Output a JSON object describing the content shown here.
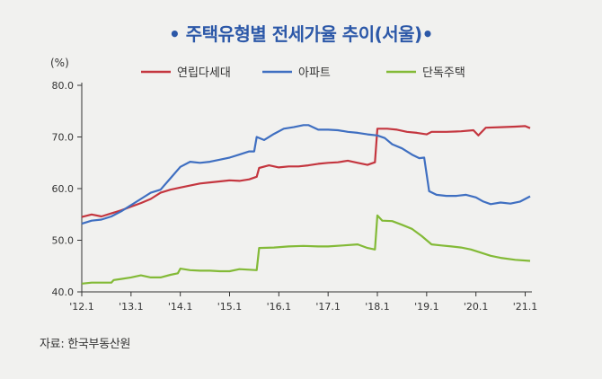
{
  "title": "• 주택유형별 전세가율 추이(서울)•",
  "source": "자료: 한국부동산원",
  "chart_data": {
    "type": "line",
    "ylabel": "(%)",
    "ylim": [
      40,
      80
    ],
    "yticks": [
      {
        "value": 80,
        "label": "80.0"
      },
      {
        "value": 70,
        "label": "70.0"
      },
      {
        "value": 60,
        "label": "60.0"
      },
      {
        "value": 50,
        "label": "50.0"
      },
      {
        "value": 40,
        "label": "40.0"
      }
    ],
    "xlim": [
      2012.0,
      2021.1
    ],
    "xticks": [
      {
        "value": 2012,
        "label": "'12.1"
      },
      {
        "value": 2013,
        "label": "'13.1"
      },
      {
        "value": 2014,
        "label": "'14.1"
      },
      {
        "value": 2015,
        "label": "'15.1"
      },
      {
        "value": 2016,
        "label": "'16.1"
      },
      {
        "value": 2017,
        "label": "'17.1"
      },
      {
        "value": 2018,
        "label": "'18.1"
      },
      {
        "value": 2019,
        "label": "'19.1"
      },
      {
        "value": 2020,
        "label": "'20.1"
      },
      {
        "value": 2021,
        "label": "'21.1"
      }
    ],
    "series": [
      {
        "name": "연립다세대",
        "color": "#c4363f",
        "points": [
          [
            2012.0,
            54.5
          ],
          [
            2012.2,
            55.0
          ],
          [
            2012.4,
            54.6
          ],
          [
            2012.6,
            55.2
          ],
          [
            2012.8,
            55.8
          ],
          [
            2013.0,
            56.5
          ],
          [
            2013.2,
            57.2
          ],
          [
            2013.4,
            58.0
          ],
          [
            2013.6,
            59.2
          ],
          [
            2013.8,
            59.8
          ],
          [
            2014.0,
            60.2
          ],
          [
            2014.2,
            60.6
          ],
          [
            2014.4,
            61.0
          ],
          [
            2014.6,
            61.2
          ],
          [
            2014.8,
            61.4
          ],
          [
            2015.0,
            61.6
          ],
          [
            2015.2,
            61.5
          ],
          [
            2015.4,
            61.8
          ],
          [
            2015.55,
            62.3
          ],
          [
            2015.6,
            64.0
          ],
          [
            2015.8,
            64.5
          ],
          [
            2016.0,
            64.1
          ],
          [
            2016.2,
            64.3
          ],
          [
            2016.4,
            64.3
          ],
          [
            2016.6,
            64.5
          ],
          [
            2016.8,
            64.8
          ],
          [
            2017.0,
            65.0
          ],
          [
            2017.2,
            65.1
          ],
          [
            2017.4,
            65.4
          ],
          [
            2017.6,
            65.0
          ],
          [
            2017.8,
            64.6
          ],
          [
            2017.95,
            65.1
          ],
          [
            2018.0,
            71.6
          ],
          [
            2018.2,
            71.6
          ],
          [
            2018.4,
            71.4
          ],
          [
            2018.6,
            71.0
          ],
          [
            2018.8,
            70.8
          ],
          [
            2019.0,
            70.5
          ],
          [
            2019.1,
            71.0
          ],
          [
            2019.4,
            71.0
          ],
          [
            2019.7,
            71.1
          ],
          [
            2019.95,
            71.3
          ],
          [
            2020.05,
            70.3
          ],
          [
            2020.2,
            71.8
          ],
          [
            2020.5,
            71.9
          ],
          [
            2020.8,
            72.0
          ],
          [
            2021.0,
            72.1
          ],
          [
            2021.1,
            71.7
          ]
        ]
      },
      {
        "name": "아파트",
        "color": "#3f6fc1",
        "points": [
          [
            2012.0,
            53.2
          ],
          [
            2012.2,
            53.8
          ],
          [
            2012.4,
            54.0
          ],
          [
            2012.6,
            54.6
          ],
          [
            2012.8,
            55.6
          ],
          [
            2013.0,
            56.8
          ],
          [
            2013.2,
            58.0
          ],
          [
            2013.4,
            59.2
          ],
          [
            2013.6,
            59.8
          ],
          [
            2013.8,
            62.0
          ],
          [
            2014.0,
            64.2
          ],
          [
            2014.2,
            65.2
          ],
          [
            2014.4,
            65.0
          ],
          [
            2014.6,
            65.2
          ],
          [
            2014.8,
            65.6
          ],
          [
            2015.0,
            66.0
          ],
          [
            2015.2,
            66.6
          ],
          [
            2015.4,
            67.2
          ],
          [
            2015.5,
            67.2
          ],
          [
            2015.55,
            70.0
          ],
          [
            2015.7,
            69.4
          ],
          [
            2015.9,
            70.6
          ],
          [
            2016.1,
            71.6
          ],
          [
            2016.3,
            71.9
          ],
          [
            2016.5,
            72.3
          ],
          [
            2016.6,
            72.3
          ],
          [
            2016.8,
            71.4
          ],
          [
            2017.0,
            71.4
          ],
          [
            2017.2,
            71.3
          ],
          [
            2017.4,
            71.0
          ],
          [
            2017.6,
            70.8
          ],
          [
            2017.8,
            70.5
          ],
          [
            2018.0,
            70.3
          ],
          [
            2018.15,
            69.8
          ],
          [
            2018.3,
            68.6
          ],
          [
            2018.5,
            67.8
          ],
          [
            2018.7,
            66.6
          ],
          [
            2018.85,
            65.9
          ],
          [
            2018.95,
            66.0
          ],
          [
            2019.05,
            59.5
          ],
          [
            2019.2,
            58.8
          ],
          [
            2019.4,
            58.6
          ],
          [
            2019.6,
            58.6
          ],
          [
            2019.8,
            58.8
          ],
          [
            2020.0,
            58.3
          ],
          [
            2020.15,
            57.5
          ],
          [
            2020.3,
            57.0
          ],
          [
            2020.5,
            57.3
          ],
          [
            2020.7,
            57.1
          ],
          [
            2020.9,
            57.5
          ],
          [
            2021.1,
            58.5
          ]
        ]
      },
      {
        "name": "단독주택",
        "color": "#83ba37",
        "points": [
          [
            2012.0,
            41.6
          ],
          [
            2012.2,
            41.8
          ],
          [
            2012.4,
            41.8
          ],
          [
            2012.6,
            41.8
          ],
          [
            2012.65,
            42.3
          ],
          [
            2012.8,
            42.5
          ],
          [
            2013.0,
            42.8
          ],
          [
            2013.2,
            43.2
          ],
          [
            2013.4,
            42.8
          ],
          [
            2013.6,
            42.8
          ],
          [
            2013.8,
            43.3
          ],
          [
            2013.95,
            43.6
          ],
          [
            2014.0,
            44.5
          ],
          [
            2014.2,
            44.2
          ],
          [
            2014.4,
            44.1
          ],
          [
            2014.6,
            44.1
          ],
          [
            2014.8,
            44.0
          ],
          [
            2015.0,
            44.0
          ],
          [
            2015.2,
            44.4
          ],
          [
            2015.4,
            44.3
          ],
          [
            2015.55,
            44.2
          ],
          [
            2015.6,
            48.5
          ],
          [
            2015.9,
            48.6
          ],
          [
            2016.2,
            48.8
          ],
          [
            2016.5,
            48.9
          ],
          [
            2016.8,
            48.8
          ],
          [
            2017.0,
            48.8
          ],
          [
            2017.3,
            49.0
          ],
          [
            2017.6,
            49.2
          ],
          [
            2017.8,
            48.5
          ],
          [
            2017.95,
            48.2
          ],
          [
            2018.0,
            54.8
          ],
          [
            2018.1,
            53.8
          ],
          [
            2018.3,
            53.7
          ],
          [
            2018.5,
            53.0
          ],
          [
            2018.7,
            52.2
          ],
          [
            2018.9,
            50.8
          ],
          [
            2019.1,
            49.2
          ],
          [
            2019.3,
            49.0
          ],
          [
            2019.5,
            48.8
          ],
          [
            2019.7,
            48.6
          ],
          [
            2019.9,
            48.2
          ],
          [
            2020.1,
            47.6
          ],
          [
            2020.3,
            47.0
          ],
          [
            2020.5,
            46.6
          ],
          [
            2020.8,
            46.2
          ],
          [
            2021.1,
            46.0
          ]
        ]
      }
    ]
  }
}
